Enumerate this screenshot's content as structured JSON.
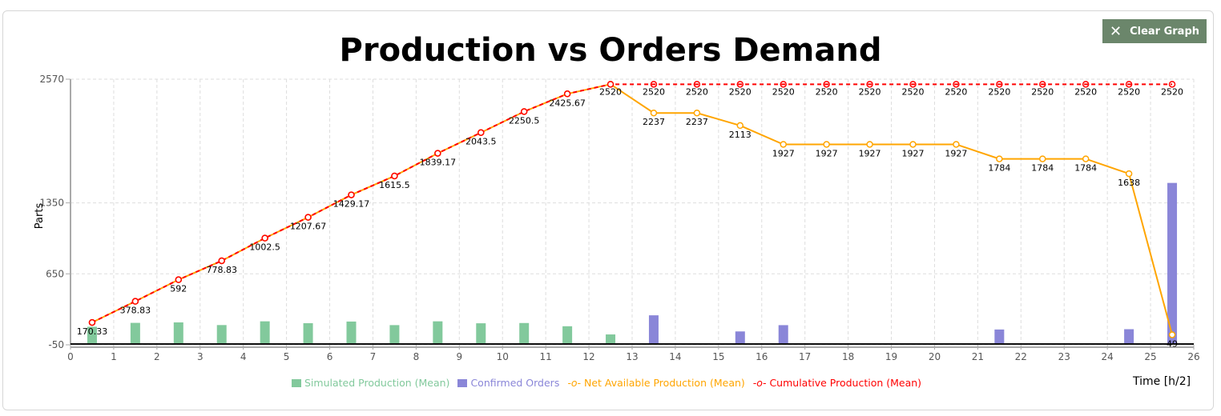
{
  "toolbar": {
    "clear_label": "Clear Graph",
    "clear_icon": "close-icon"
  },
  "chart_data": {
    "type": "bar+line",
    "title": "Production vs Orders Demand",
    "xlabel": "Time [h/2]",
    "ylabel": "Parts",
    "xlim": [
      0,
      26
    ],
    "ylim": [
      -50,
      2570
    ],
    "xticks": [
      0,
      1,
      2,
      3,
      4,
      5,
      6,
      7,
      8,
      9,
      10,
      11,
      12,
      13,
      14,
      15,
      16,
      17,
      18,
      19,
      20,
      21,
      22,
      23,
      24,
      25,
      26
    ],
    "yticks": [
      -50,
      650,
      1350,
      2570
    ],
    "grid": true,
    "legend": "bottom",
    "series": [
      {
        "name": "Simulated Production (Mean)",
        "kind": "bar",
        "color": "#82c99c",
        "x": [
          0.5,
          1.5,
          2.5,
          3.5,
          4.5,
          5.5,
          6.5,
          7.5,
          8.5,
          9.5,
          10.5,
          11.5,
          12.5
        ],
        "values": [
          170.33,
          208.5,
          213.17,
          186.83,
          223.67,
          205.17,
          221.5,
          186.33,
          223.67,
          204.33,
          207,
          175.17,
          94.33
        ]
      },
      {
        "name": "Confirmed Orders",
        "kind": "bar",
        "color": "#8a86d8",
        "x": [
          13.5,
          15.5,
          16.5,
          21.5,
          24.5,
          25.5
        ],
        "values": [
          283,
          124,
          186,
          143,
          146,
          1589
        ]
      },
      {
        "name": "Net Available Production (Mean)",
        "kind": "line",
        "color": "#ffa500",
        "x": [
          0.5,
          1.5,
          2.5,
          3.5,
          4.5,
          5.5,
          6.5,
          7.5,
          8.5,
          9.5,
          10.5,
          11.5,
          12.5,
          13.5,
          14.5,
          15.5,
          16.5,
          17.5,
          18.5,
          19.5,
          20.5,
          21.5,
          22.5,
          23.5,
          24.5,
          25.5
        ],
        "values": [
          170.33,
          378.83,
          592,
          778.83,
          1002.5,
          1207.67,
          1429.17,
          1615.5,
          1839.17,
          2043.5,
          2250.5,
          2425.67,
          2520,
          2237,
          2237,
          2113,
          1927,
          1927,
          1927,
          1927,
          1927,
          1784,
          1784,
          1784,
          1638,
          49
        ]
      },
      {
        "name": "Cumulative Production (Mean)",
        "kind": "line",
        "color": "#ff0000",
        "x": [
          0.5,
          1.5,
          2.5,
          3.5,
          4.5,
          5.5,
          6.5,
          7.5,
          8.5,
          9.5,
          10.5,
          11.5,
          12.5,
          13.5,
          14.5,
          15.5,
          16.5,
          17.5,
          18.5,
          19.5,
          20.5,
          21.5,
          22.5,
          23.5,
          24.5,
          25.5
        ],
        "values": [
          170.33,
          378.83,
          592,
          778.83,
          1002.5,
          1207.67,
          1429.17,
          1615.5,
          1839.17,
          2043.5,
          2250.5,
          2425.67,
          2520,
          2520,
          2520,
          2520,
          2520,
          2520,
          2520,
          2520,
          2520,
          2520,
          2520,
          2520,
          2520,
          2520
        ]
      }
    ]
  }
}
